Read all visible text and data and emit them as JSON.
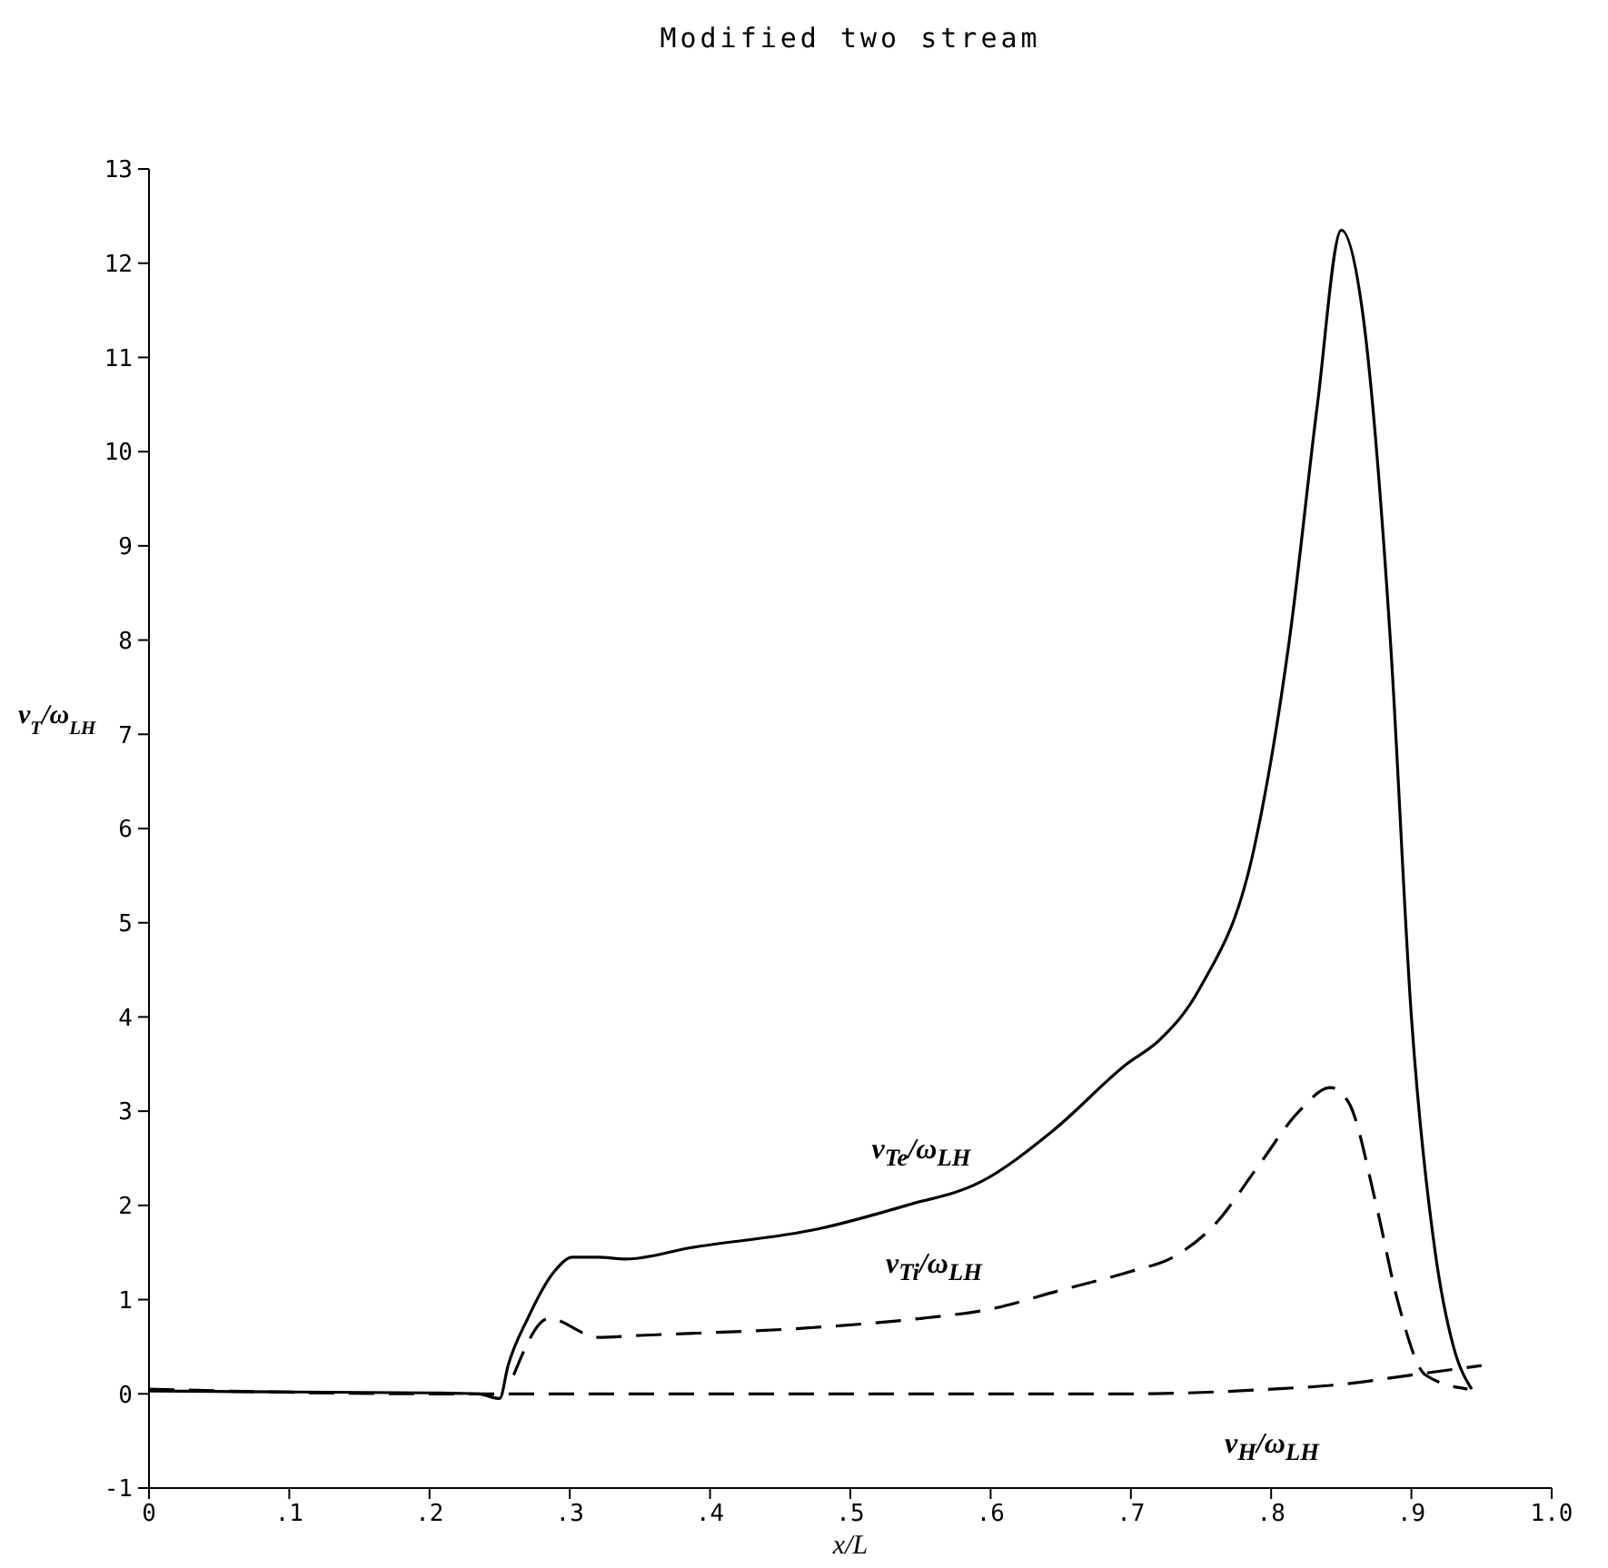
{
  "chart_data": {
    "type": "line",
    "title": "Modified two stream",
    "xlabel": "x/L",
    "ylabel": "ν$_{T}$/ω$_{LH}$",
    "xlim": [
      0,
      1
    ],
    "xticks": [
      0,
      {
        "value": 0.1,
        "label": ".1"
      },
      {
        "value": 0.2,
        "label": ".2"
      },
      {
        "value": 0.3,
        "label": ".3"
      },
      {
        "value": 0.4,
        "label": ".4"
      },
      {
        "value": 0.5,
        "label": ".5"
      },
      {
        "value": 0.6,
        "label": ".6"
      },
      {
        "value": 0.7,
        "label": ".7"
      },
      {
        "value": 0.8,
        "label": ".8"
      },
      {
        "value": 0.9,
        "label": ".9"
      },
      {
        "value": 1,
        "label": "1.0"
      }
    ],
    "ylim": [
      -1,
      13
    ],
    "yticks": [
      -1,
      0,
      1,
      2,
      3,
      4,
      5,
      6,
      7,
      8,
      9,
      10,
      11,
      12,
      13
    ],
    "grid": false,
    "legend": false,
    "marker": "none",
    "series": [
      {
        "name": "ν$_{Te}$/ω$_{LH}$",
        "color": "#000000",
        "line_style": "solid",
        "x": [
          0,
          0.1,
          0.2,
          0.235,
          0.25,
          0.256,
          0.27,
          0.289,
          0.302,
          0.32,
          0.34,
          0.386,
          0.477,
          0.54,
          0.593,
          0.645,
          0.697,
          0.72,
          0.749,
          0.788,
          0.813,
          0.833,
          0.85,
          0.865,
          0.885,
          0.9,
          0.917,
          0.93,
          0.943
        ],
        "values": [
          0.03,
          0.02,
          0.01,
          0,
          -0.05,
          0.3,
          0.8,
          1.3,
          1.45,
          1.45,
          1.43,
          1.55,
          1.75,
          2.0,
          2.25,
          2.8,
          3.5,
          3.75,
          4.3,
          5.8,
          8,
          10.5,
          12.35,
          11.5,
          8,
          4,
          1.5,
          0.5,
          0.05
        ]
      },
      {
        "name": "ν$_{Ti}$/ω$_{LH}$",
        "color": "#000000",
        "line_style": "dashed",
        "x": [
          0.26,
          0.285,
          0.32,
          0.35,
          0.47,
          0.55,
          0.6,
          0.65,
          0.7,
          0.73,
          0.76,
          0.79,
          0.82,
          0.842,
          0.855,
          0.875,
          0.89,
          0.91,
          0.94
        ],
        "values": [
          0.2,
          0.8,
          0.6,
          0.62,
          0.7,
          0.8,
          0.9,
          1.1,
          1.3,
          1.45,
          1.8,
          2.4,
          3.0,
          3.25,
          3.1,
          2.0,
          1.0,
          0.2,
          0.05
        ]
      },
      {
        "name": "ν$_{H}$/ω$_{LH}$",
        "color": "#000000",
        "line_style": "dashed",
        "x": [
          0,
          0.2,
          0.5,
          0.7,
          0.8,
          0.85,
          0.9,
          0.95
        ],
        "values": [
          0.05,
          0,
          0,
          0,
          0.05,
          0.1,
          0.2,
          0.3
        ]
      }
    ]
  }
}
